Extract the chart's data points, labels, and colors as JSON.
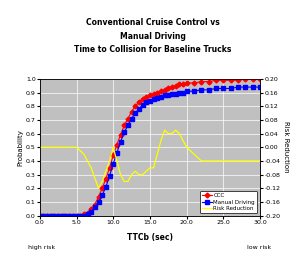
{
  "title": "Conventional Cruise Control vs\nManual Driving\nTime to Collision for Baseline Trucks",
  "xlabel": "TTCb (sec)",
  "ylabel_left": "Probability",
  "ylabel_right": "Risk Reduction",
  "xlabel_sub_left": "high risk",
  "xlabel_sub_right": "low risk",
  "xlim": [
    0.0,
    30.0
  ],
  "ylim_left": [
    0.0,
    1.0
  ],
  "ylim_right": [
    -0.2,
    0.2
  ],
  "xticks": [
    0.0,
    5.0,
    10.0,
    15.0,
    20.0,
    25.0,
    30.0
  ],
  "yticks_left": [
    0.0,
    0.1,
    0.2,
    0.3,
    0.4,
    0.5,
    0.6,
    0.7,
    0.8,
    0.9,
    1.0
  ],
  "yticks_right": [
    -0.2,
    -0.16,
    -0.12,
    -0.08,
    -0.04,
    0.0,
    0.04,
    0.08,
    0.12,
    0.16,
    0.2
  ],
  "legend_labels": [
    "CCC",
    "Manual Driving",
    "Risk Reduction"
  ],
  "ccc_color": "#FF0000",
  "manual_color": "#0000FF",
  "risk_color": "#FFFF00",
  "background_color": "#C0C0C0",
  "fig_bg": "#FFFFFF",
  "border_color": "#000000",
  "ccc_x": [
    0.0,
    0.5,
    1.0,
    1.5,
    2.0,
    2.5,
    3.0,
    3.5,
    4.0,
    4.5,
    5.0,
    5.5,
    6.0,
    6.5,
    7.0,
    7.5,
    8.0,
    8.5,
    9.0,
    9.5,
    10.0,
    10.5,
    11.0,
    11.5,
    12.0,
    12.5,
    13.0,
    13.5,
    14.0,
    14.5,
    15.0,
    15.5,
    16.0,
    16.5,
    17.0,
    17.5,
    18.0,
    18.5,
    19.0,
    19.5,
    20.0,
    21.0,
    22.0,
    23.0,
    24.0,
    25.0,
    26.0,
    27.0,
    28.0,
    29.0,
    30.0
  ],
  "ccc_y": [
    0.0,
    0.0,
    0.0,
    0.0,
    0.0,
    0.0,
    0.0,
    0.0,
    0.0,
    0.0,
    0.0,
    0.0,
    0.01,
    0.02,
    0.05,
    0.08,
    0.14,
    0.2,
    0.27,
    0.35,
    0.44,
    0.52,
    0.59,
    0.66,
    0.71,
    0.76,
    0.8,
    0.83,
    0.85,
    0.87,
    0.88,
    0.89,
    0.9,
    0.91,
    0.92,
    0.93,
    0.94,
    0.95,
    0.96,
    0.96,
    0.97,
    0.97,
    0.98,
    0.98,
    0.99,
    0.99,
    0.99,
    0.99,
    1.0,
    1.0,
    1.0
  ],
  "manual_x": [
    0.0,
    0.5,
    1.0,
    1.5,
    2.0,
    2.5,
    3.0,
    3.5,
    4.0,
    4.5,
    5.0,
    5.5,
    6.0,
    6.5,
    7.0,
    7.5,
    8.0,
    8.5,
    9.0,
    9.5,
    10.0,
    10.5,
    11.0,
    11.5,
    12.0,
    12.5,
    13.0,
    13.5,
    14.0,
    14.5,
    15.0,
    15.5,
    16.0,
    16.5,
    17.0,
    17.5,
    18.0,
    18.5,
    19.0,
    19.5,
    20.0,
    21.0,
    22.0,
    23.0,
    24.0,
    25.0,
    26.0,
    27.0,
    28.0,
    29.0,
    30.0
  ],
  "manual_y": [
    0.0,
    0.0,
    0.0,
    0.0,
    0.0,
    0.0,
    0.0,
    0.0,
    0.0,
    0.0,
    0.0,
    0.0,
    0.0,
    0.01,
    0.03,
    0.06,
    0.1,
    0.15,
    0.21,
    0.29,
    0.38,
    0.46,
    0.54,
    0.61,
    0.66,
    0.71,
    0.75,
    0.78,
    0.81,
    0.83,
    0.84,
    0.85,
    0.86,
    0.87,
    0.88,
    0.88,
    0.89,
    0.89,
    0.9,
    0.9,
    0.91,
    0.91,
    0.92,
    0.92,
    0.93,
    0.93,
    0.93,
    0.94,
    0.94,
    0.94,
    0.94
  ],
  "risk_x": [
    0.0,
    1.0,
    2.0,
    3.0,
    4.0,
    5.0,
    6.0,
    7.0,
    7.5,
    8.0,
    8.5,
    9.0,
    9.5,
    10.0,
    10.5,
    11.0,
    11.5,
    12.0,
    12.5,
    13.0,
    13.5,
    14.0,
    14.5,
    15.0,
    15.5,
    16.0,
    16.5,
    17.0,
    17.5,
    18.0,
    18.5,
    19.0,
    19.5,
    20.0,
    21.0,
    22.0,
    23.0,
    24.0,
    25.0,
    26.0,
    27.0,
    28.0,
    29.0,
    30.0
  ],
  "risk_y": [
    0.0,
    0.0,
    0.0,
    0.0,
    0.0,
    0.0,
    -0.02,
    -0.06,
    -0.09,
    -0.12,
    -0.1,
    -0.07,
    -0.04,
    0.0,
    -0.04,
    -0.08,
    -0.1,
    -0.1,
    -0.08,
    -0.07,
    -0.08,
    -0.08,
    -0.07,
    -0.06,
    -0.06,
    -0.02,
    0.02,
    0.05,
    0.04,
    0.04,
    0.05,
    0.04,
    0.02,
    0.0,
    -0.02,
    -0.04,
    -0.04,
    -0.04,
    -0.04,
    -0.04,
    -0.04,
    -0.04,
    -0.04,
    -0.04
  ]
}
